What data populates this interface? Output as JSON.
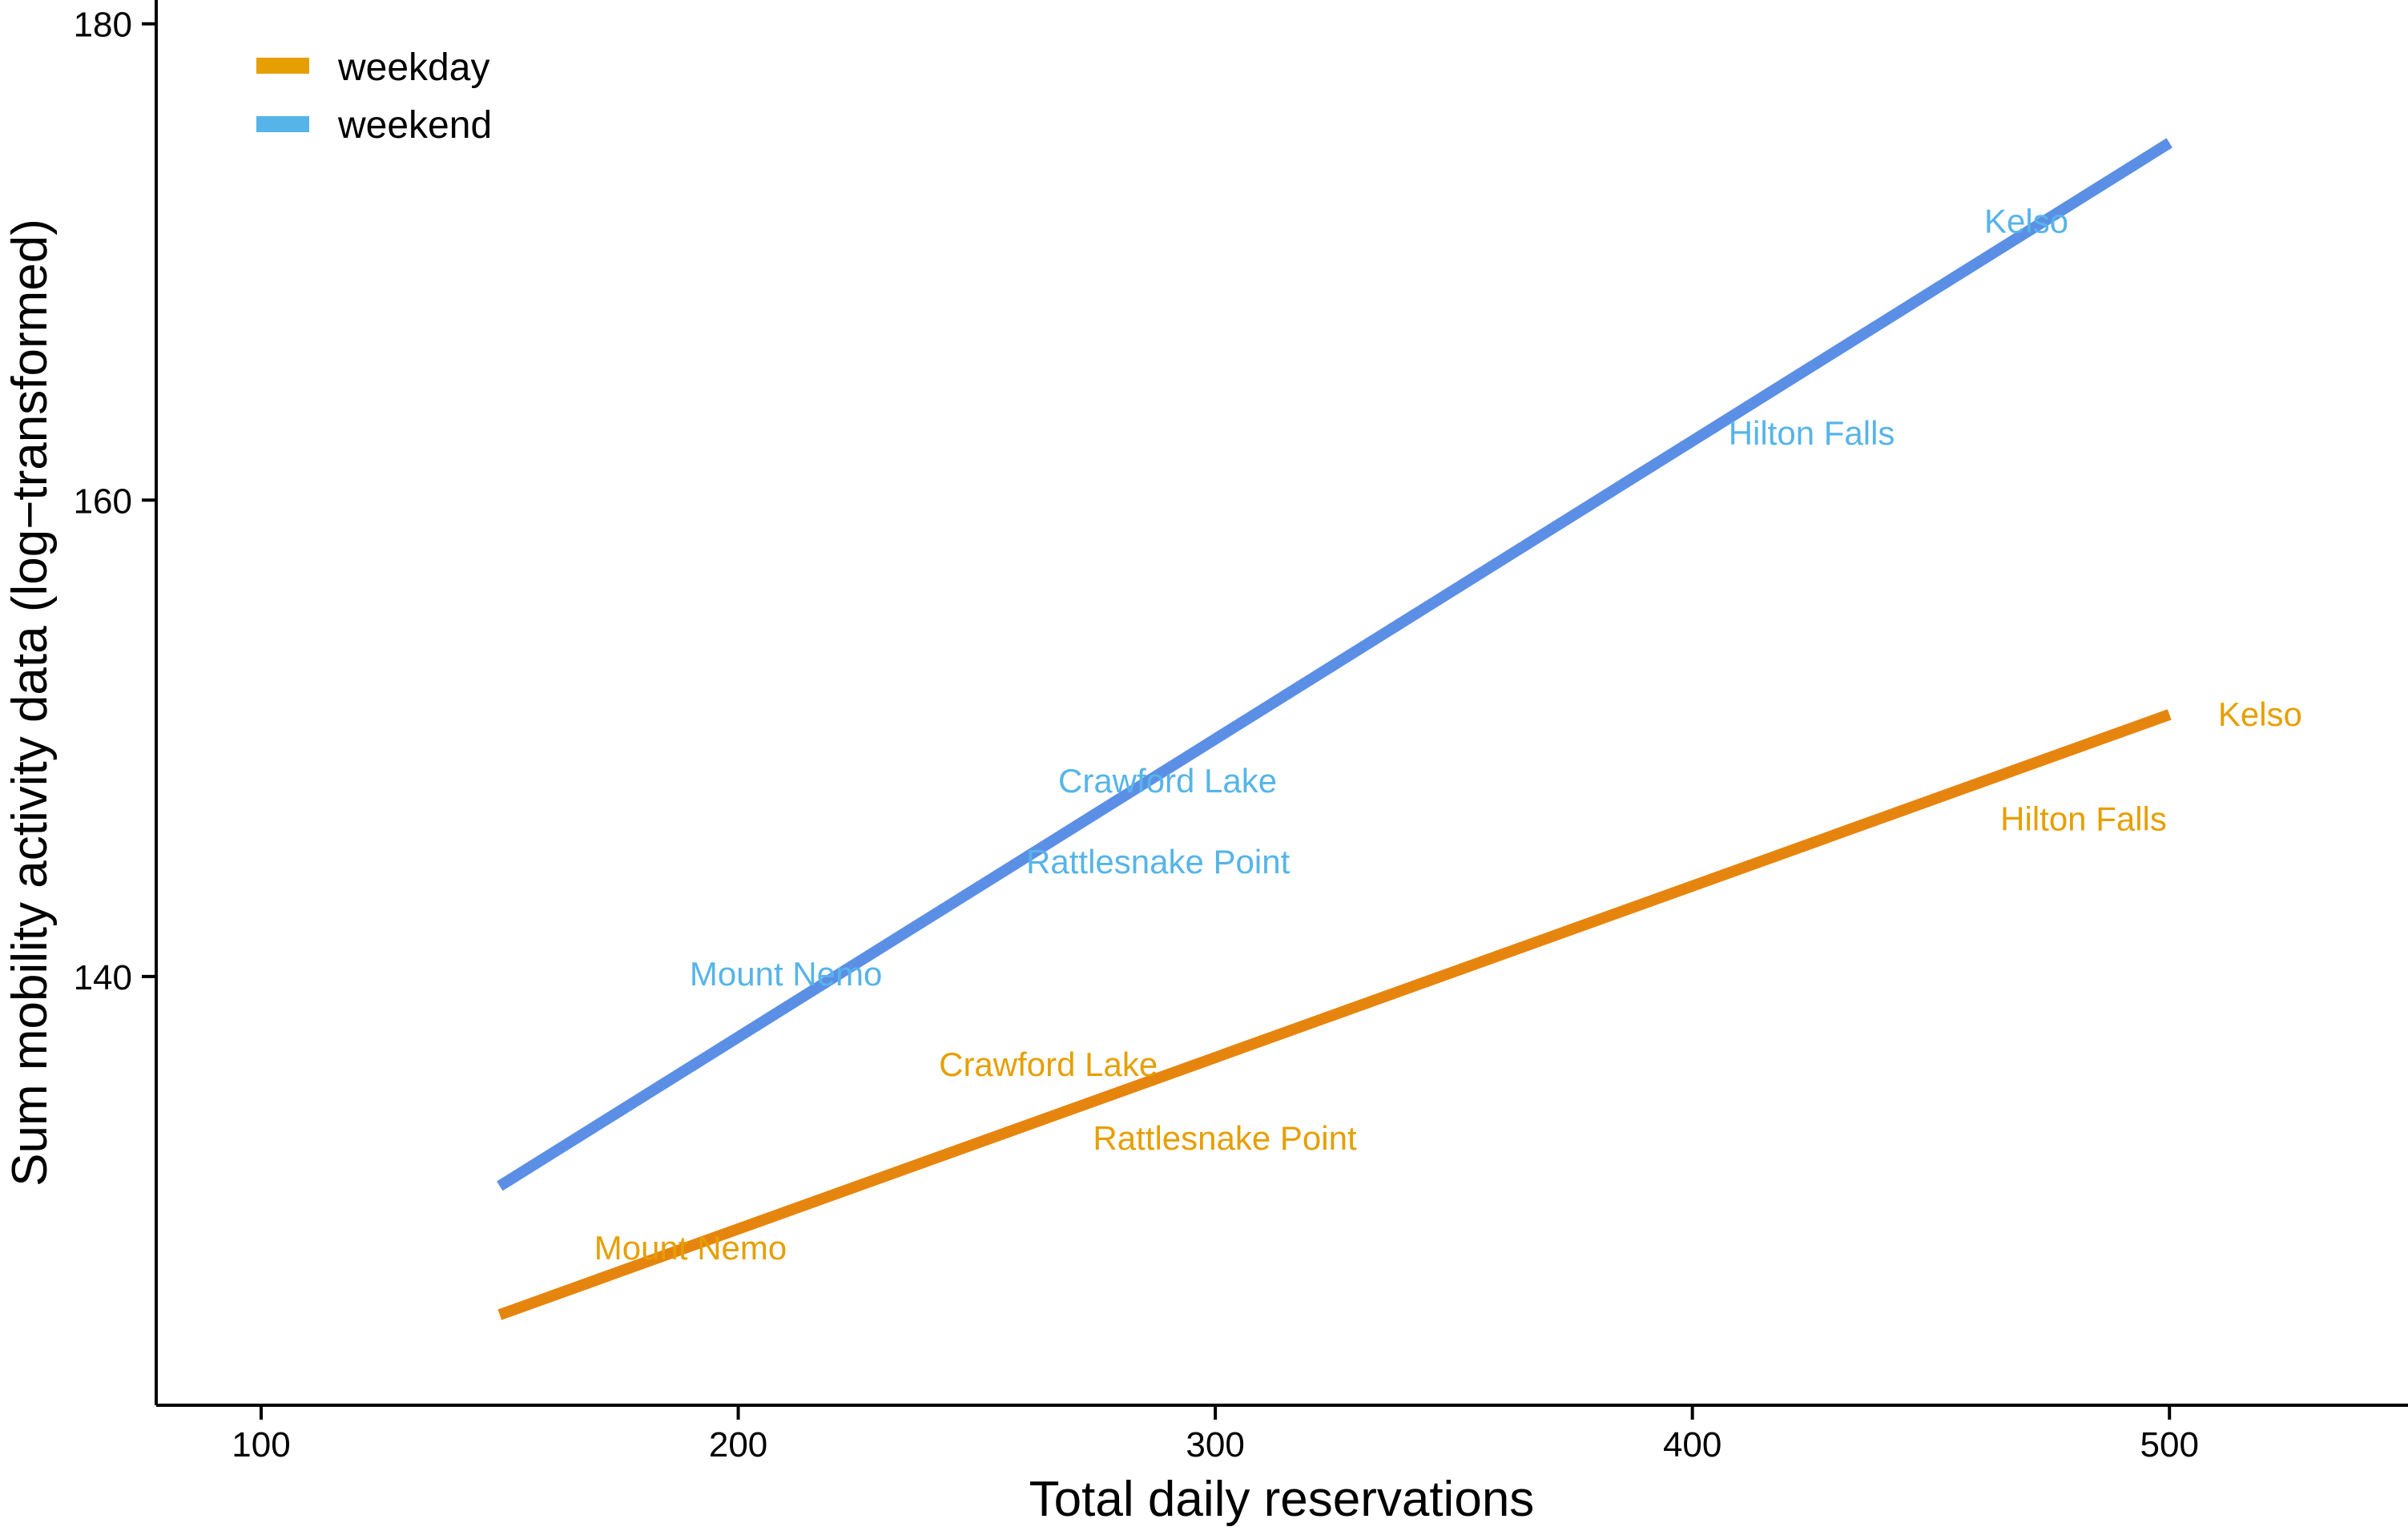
{
  "chart_data": {
    "type": "line",
    "title": "",
    "xlabel": "Total daily reservations",
    "ylabel": "Sum mobility activity data (log−transformed)",
    "xlim": [
      78,
      550
    ],
    "ylim": [
      122,
      181
    ],
    "x_ticks": [
      "100",
      "200",
      "300",
      "400",
      "500"
    ],
    "x_tick_values": [
      100,
      200,
      300,
      400,
      500
    ],
    "y_ticks": [
      "140",
      "160",
      "180"
    ],
    "y_tick_values": [
      140,
      160,
      180
    ],
    "grid": false,
    "legend_position": "top-left",
    "series": [
      {
        "name": "weekday",
        "color": "#E69F00",
        "line_color": "#E6850E",
        "x": [
          150,
          500
        ],
        "y": [
          125.8,
          151.0
        ],
        "labels": [
          {
            "text": "Mount Nemo",
            "x": 190,
            "y": 128.5
          },
          {
            "text": "Crawford Lake",
            "x": 265,
            "y": 136.2
          },
          {
            "text": "Rattlesnake Point",
            "x": 302,
            "y": 133.1
          },
          {
            "text": "Hilton Falls",
            "x": 482,
            "y": 146.5
          },
          {
            "text": "Kelso",
            "x": 519,
            "y": 150.9
          }
        ]
      },
      {
        "name": "weekend",
        "color": "#56B4E9",
        "line_color": "#5B8FE5",
        "x": [
          150,
          500
        ],
        "y": [
          131.2,
          175.0
        ],
        "labels": [
          {
            "text": "Mount Nemo",
            "x": 210,
            "y": 140.0
          },
          {
            "text": "Crawford Lake",
            "x": 290,
            "y": 148.1
          },
          {
            "text": "Rattlesnake Point",
            "x": 288,
            "y": 144.7
          },
          {
            "text": "Hilton Falls",
            "x": 425,
            "y": 162.7
          },
          {
            "text": "Kelso",
            "x": 470,
            "y": 171.6
          }
        ]
      }
    ]
  }
}
